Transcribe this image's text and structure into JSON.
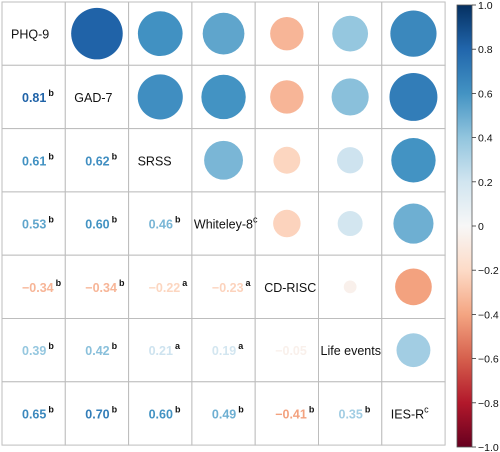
{
  "chart_data": {
    "type": "heatmap",
    "variables": [
      {
        "name": "PHQ-9",
        "sup": ""
      },
      {
        "name": "GAD-7",
        "sup": ""
      },
      {
        "name": "SRSS",
        "sup": ""
      },
      {
        "name": "Whiteley-8",
        "sup": "c"
      },
      {
        "name": "CD-RISC",
        "sup": ""
      },
      {
        "name": "Life events",
        "sup": ""
      },
      {
        "name": "IES-R",
        "sup": "c"
      }
    ],
    "lower_triangle_labels": [
      {
        "row": 1,
        "col": 0,
        "text": "0.81",
        "sup": "b",
        "value": 0.81
      },
      {
        "row": 2,
        "col": 0,
        "text": "0.61",
        "sup": "b",
        "value": 0.61
      },
      {
        "row": 2,
        "col": 1,
        "text": "0.62",
        "sup": "b",
        "value": 0.62
      },
      {
        "row": 3,
        "col": 0,
        "text": "0.53",
        "sup": "b",
        "value": 0.53
      },
      {
        "row": 3,
        "col": 1,
        "text": "0.60",
        "sup": "b",
        "value": 0.6
      },
      {
        "row": 3,
        "col": 2,
        "text": "0.46",
        "sup": "b",
        "value": 0.46
      },
      {
        "row": 4,
        "col": 0,
        "text": "−0.34",
        "sup": "b",
        "value": -0.34
      },
      {
        "row": 4,
        "col": 1,
        "text": "−0.34",
        "sup": "b",
        "value": -0.34
      },
      {
        "row": 4,
        "col": 2,
        "text": "−0.22",
        "sup": "a",
        "value": -0.22
      },
      {
        "row": 4,
        "col": 3,
        "text": "−0.23",
        "sup": "a",
        "value": -0.23
      },
      {
        "row": 5,
        "col": 0,
        "text": "0.39",
        "sup": "b",
        "value": 0.39
      },
      {
        "row": 5,
        "col": 1,
        "text": "0.42",
        "sup": "b",
        "value": 0.42
      },
      {
        "row": 5,
        "col": 2,
        "text": "0.21",
        "sup": "a",
        "value": 0.21
      },
      {
        "row": 5,
        "col": 3,
        "text": "0.19",
        "sup": "a",
        "value": 0.19
      },
      {
        "row": 5,
        "col": 4,
        "text": "−0.05",
        "sup": "",
        "value": -0.05
      },
      {
        "row": 6,
        "col": 0,
        "text": "0.65",
        "sup": "b",
        "value": 0.65
      },
      {
        "row": 6,
        "col": 1,
        "text": "0.70",
        "sup": "b",
        "value": 0.7
      },
      {
        "row": 6,
        "col": 2,
        "text": "0.60",
        "sup": "b",
        "value": 0.6
      },
      {
        "row": 6,
        "col": 3,
        "text": "0.49",
        "sup": "b",
        "value": 0.49
      },
      {
        "row": 6,
        "col": 4,
        "text": "−0.41",
        "sup": "b",
        "value": -0.41
      },
      {
        "row": 6,
        "col": 5,
        "text": "0.35",
        "sup": "b",
        "value": 0.35
      }
    ],
    "colorbar": {
      "range": [
        -1.0,
        1.0
      ],
      "ticks": [
        "1.0",
        "0.8",
        "0.6",
        "0.4",
        "0.2",
        "0",
        "−0.2",
        "−0.4",
        "−0.6",
        "−0.8",
        "−1.0"
      ],
      "colormap": "RdBu",
      "stops": [
        "#67001f",
        "#b2182b",
        "#d6604d",
        "#f4a582",
        "#fddbc7",
        "#f7f7f7",
        "#d1e5f0",
        "#92c5de",
        "#4393c3",
        "#2166ac",
        "#053061"
      ]
    },
    "upper_triangle": "circles sized and colored by the correlation coefficient",
    "grid": true
  }
}
